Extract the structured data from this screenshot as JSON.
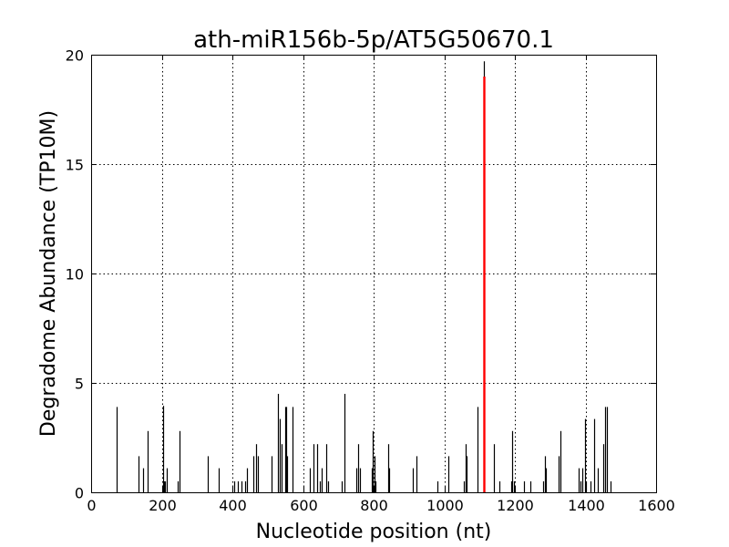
{
  "chart_data": {
    "type": "bar",
    "title": "ath-miR156b-5p/AT5G50670.1",
    "xlabel": "Nucleotide position (nt)",
    "ylabel": "Degradome Abundance (TP10M)",
    "xlim": [
      0,
      1600
    ],
    "ylim": [
      0,
      20
    ],
    "xticks": [
      "0",
      "200",
      "400",
      "600",
      "800",
      "1000",
      "1200",
      "1400",
      "1600"
    ],
    "yticks": [
      "0",
      "5",
      "10",
      "15",
      "20"
    ],
    "grid": true,
    "series": [
      {
        "values": [
          [
            72,
            3.9
          ],
          [
            135,
            1.65
          ],
          [
            148,
            1.1
          ],
          [
            160,
            2.8
          ],
          [
            205,
            3.95
          ],
          [
            207,
            0.5
          ],
          [
            210,
            0.5
          ],
          [
            215,
            1.1
          ],
          [
            245,
            0.5
          ],
          [
            250,
            2.8
          ],
          [
            330,
            1.65
          ],
          [
            360,
            1.1
          ],
          [
            405,
            0.5
          ],
          [
            415,
            0.5
          ],
          [
            425,
            0.5
          ],
          [
            437,
            0.5
          ],
          [
            442,
            1.1
          ],
          [
            460,
            1.65
          ],
          [
            468,
            2.2
          ],
          [
            472,
            1.65
          ],
          [
            510,
            1.65
          ],
          [
            530,
            4.5
          ],
          [
            535,
            3.35
          ],
          [
            540,
            2.2
          ],
          [
            550,
            3.9
          ],
          [
            552,
            3.9
          ],
          [
            555,
            1.65
          ],
          [
            570,
            3.9
          ],
          [
            620,
            1.1
          ],
          [
            630,
            2.2
          ],
          [
            640,
            2.2
          ],
          [
            648,
            0.5
          ],
          [
            652,
            1.1
          ],
          [
            665,
            2.2
          ],
          [
            670,
            0.5
          ],
          [
            710,
            0.5
          ],
          [
            718,
            4.5
          ],
          [
            752,
            1.1
          ],
          [
            757,
            2.2
          ],
          [
            762,
            1.1
          ],
          [
            795,
            1.1
          ],
          [
            798,
            2.8
          ],
          [
            802,
            1.65
          ],
          [
            806,
            0.5
          ],
          [
            842,
            2.2
          ],
          [
            845,
            1.1
          ],
          [
            910,
            1.1
          ],
          [
            920,
            1.65
          ],
          [
            980,
            0.5
          ],
          [
            1012,
            1.65
          ],
          [
            1055,
            0.5
          ],
          [
            1060,
            2.2
          ],
          [
            1063,
            1.65
          ],
          [
            1095,
            3.9
          ],
          [
            1140,
            2.2
          ],
          [
            1155,
            0.5
          ],
          [
            1190,
            0.5
          ],
          [
            1193,
            2.8
          ],
          [
            1198,
            0.5
          ],
          [
            1225,
            0.5
          ],
          [
            1245,
            0.5
          ],
          [
            1280,
            0.5
          ],
          [
            1285,
            1.65
          ],
          [
            1288,
            1.1
          ],
          [
            1325,
            1.65
          ],
          [
            1330,
            2.8
          ],
          [
            1380,
            1.1
          ],
          [
            1385,
            0.5
          ],
          [
            1392,
            1.1
          ],
          [
            1398,
            3.35
          ],
          [
            1402,
            0.5
          ],
          [
            1415,
            0.5
          ],
          [
            1425,
            3.35
          ],
          [
            1435,
            1.1
          ],
          [
            1450,
            2.2
          ],
          [
            1455,
            3.9
          ],
          [
            1460,
            3.9
          ],
          [
            1470,
            0.5
          ]
        ],
        "color": "#000000"
      },
      {
        "values": [
          [
            1113,
            19.7
          ]
        ],
        "color": "#000000"
      },
      {
        "values": [
          [
            1111,
            19.0
          ]
        ],
        "color": "#ff0000"
      }
    ]
  }
}
